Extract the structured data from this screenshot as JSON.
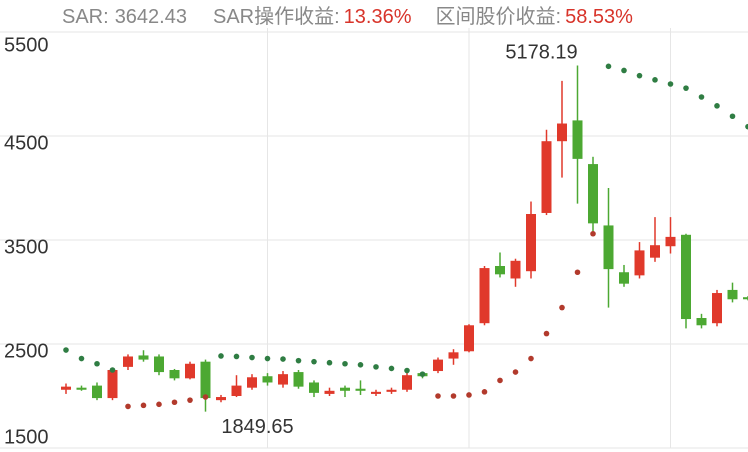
{
  "header": {
    "items": [
      {
        "label": "SAR:",
        "value": "3642.43"
      },
      {
        "label": "SAR操作收益:",
        "value": "13.36%"
      },
      {
        "label": "区间股价收益:",
        "value": "58.53%"
      }
    ]
  },
  "chart_data": {
    "type": "candlestick",
    "categories": [
      null,
      null,
      null,
      null,
      null,
      null,
      null,
      null,
      null,
      null,
      null,
      null,
      null,
      null,
      null,
      null,
      null,
      null,
      null,
      null,
      null,
      null,
      null,
      null,
      null,
      null,
      null,
      null,
      null,
      null,
      null,
      null,
      null,
      null,
      null,
      null,
      null,
      null,
      null,
      null,
      null,
      null,
      null,
      null,
      null
    ],
    "open": [
      2060,
      2080,
      2100,
      1980,
      2280,
      2390,
      2380,
      2250,
      2170,
      2330,
      1960,
      2000,
      2080,
      2190,
      2110,
      2230,
      2130,
      2020,
      2080,
      2070,
      2020,
      2040,
      2060,
      2220,
      2240,
      2360,
      2430,
      2700,
      3250,
      3130,
      3200,
      3760,
      4450,
      4650,
      4230,
      3640,
      3190,
      3160,
      3330,
      3440,
      3550,
      2750,
      2700,
      3020,
      2950
    ],
    "high": [
      2120,
      2100,
      2130,
      2270,
      2400,
      2440,
      2400,
      2260,
      2330,
      2350,
      2010,
      2200,
      2210,
      2220,
      2240,
      2250,
      2150,
      2080,
      2100,
      2150,
      2060,
      2080,
      2230,
      2230,
      2370,
      2450,
      2690,
      3250,
      3380,
      3320,
      3870,
      4560,
      5030,
      5178.19,
      4300,
      4000,
      3260,
      3480,
      3720,
      3720,
      3560,
      2790,
      3020,
      3090,
      2960
    ],
    "low": [
      2020,
      2050,
      1960,
      1960,
      2250,
      2330,
      2200,
      2150,
      2160,
      1849.65,
      1940,
      1990,
      2060,
      2100,
      2080,
      2070,
      1990,
      2000,
      1990,
      2010,
      2000,
      2020,
      2040,
      2170,
      2220,
      2300,
      2420,
      2680,
      3140,
      3050,
      3130,
      3740,
      4100,
      3850,
      3580,
      2850,
      3050,
      3130,
      3290,
      3370,
      2650,
      2650,
      2670,
      2900,
      2920
    ],
    "close": [
      2090,
      2060,
      1980,
      2250,
      2380,
      2350,
      2230,
      2170,
      2310,
      1980,
      1990,
      2100,
      2180,
      2130,
      2210,
      2090,
      2030,
      2050,
      2050,
      2050,
      2040,
      2060,
      2200,
      2190,
      2350,
      2420,
      2680,
      3230,
      3170,
      3300,
      3750,
      4450,
      4620,
      4280,
      3660,
      3220,
      3080,
      3400,
      3450,
      3530,
      2740,
      2680,
      2990,
      2930,
      2930
    ],
    "up_color": "#e0392b",
    "down_color": "#4ca832",
    "series": [
      {
        "name": "SAR-high",
        "color": "#2f7d43",
        "values": [
          2442,
          2360,
          2310,
          2250,
          null,
          null,
          null,
          null,
          null,
          null,
          2385,
          2380,
          2370,
          2360,
          2355,
          2340,
          2330,
          2320,
          2310,
          2300,
          2280,
          2265,
          2245,
          2210,
          null,
          null,
          null,
          null,
          null,
          null,
          null,
          null,
          null,
          null,
          null,
          5170,
          5130,
          5080,
          5040,
          5000,
          4960,
          4875,
          4790,
          4690,
          4590
        ]
      },
      {
        "name": "SAR-low",
        "color": "#b23a2c",
        "values": [
          null,
          null,
          null,
          null,
          1900,
          1910,
          1920,
          1940,
          1960,
          1990,
          null,
          null,
          null,
          null,
          null,
          null,
          null,
          null,
          null,
          null,
          null,
          null,
          null,
          null,
          2000,
          2000,
          2010,
          2040,
          2150,
          2230,
          2360,
          2600,
          2850,
          3190,
          3560,
          null,
          null,
          null,
          null,
          null,
          null,
          null,
          null,
          null,
          null
        ]
      }
    ],
    "ylim": [
      1500,
      5500
    ],
    "yticks": [
      1500,
      2500,
      3500,
      4500,
      5500
    ],
    "grid": true
  }
}
